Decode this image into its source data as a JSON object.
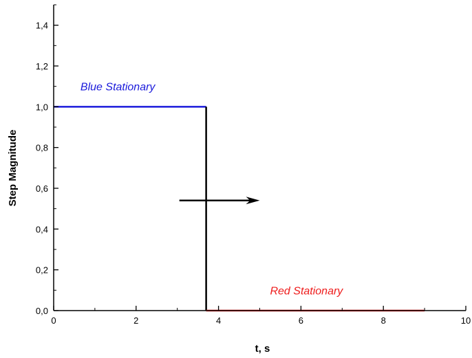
{
  "chart_data": {
    "type": "line",
    "title": "",
    "xlabel": "t, s",
    "ylabel": "Step Magnitude",
    "xlim": [
      0,
      10
    ],
    "ylim": [
      0,
      1.5
    ],
    "x_ticks": [
      "0",
      "2",
      "4",
      "6",
      "8",
      "10"
    ],
    "x_tick_values": [
      0,
      2,
      4,
      6,
      8,
      10
    ],
    "y_ticks": [
      "0,0",
      "0,2",
      "0,4",
      "0,6",
      "0,8",
      "1,0",
      "1,2",
      "1,4"
    ],
    "y_tick_values": [
      0,
      0.2,
      0.4,
      0.6,
      0.8,
      1.0,
      1.2,
      1.4
    ],
    "grid": false,
    "series": [
      {
        "color": "#1a1adb",
        "x": [
          0,
          3.7
        ],
        "y": [
          1.0,
          1.0
        ]
      },
      {
        "color": "#000000",
        "x": [
          3.7,
          3.7
        ],
        "y": [
          1.0,
          0.0
        ]
      },
      {
        "color": "#ee1c1c",
        "x": [
          3.7,
          9.0
        ],
        "y": [
          0.0,
          0.0
        ]
      }
    ],
    "annotations": [
      {
        "text": "Blue Stationary",
        "x": 0.65,
        "y": 1.1,
        "color": "#1a1adb"
      },
      {
        "text": "Red Stationary",
        "x": 5.25,
        "y": 0.1,
        "color": "#ee1c1c"
      }
    ],
    "arrow": {
      "x_from": 3.05,
      "x_to": 5.0,
      "y": 0.54,
      "color": "#000000"
    }
  }
}
